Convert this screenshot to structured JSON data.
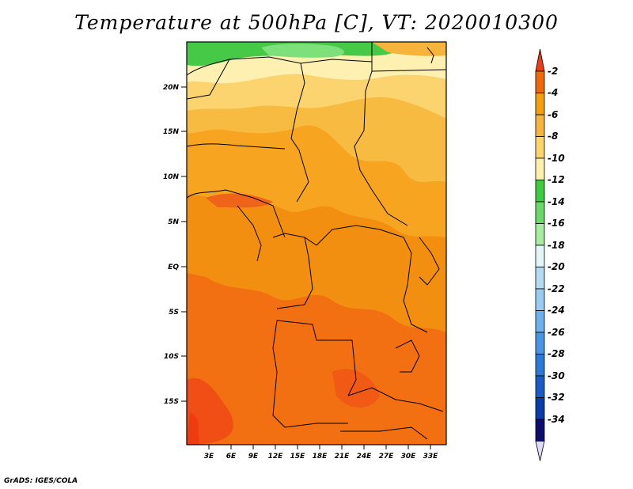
{
  "title": "Temperature at 500hPa [C], VT: 2020010300",
  "credit": "GrADS: IGES/COLA",
  "map": {
    "lat_ticks": [
      "20N",
      "15N",
      "10N",
      "5N",
      "EQ",
      "5S",
      "10S",
      "15S"
    ],
    "lon_ticks": [
      "3E",
      "6E",
      "9E",
      "12E",
      "15E",
      "18E",
      "21E",
      "24E",
      "27E",
      "30E",
      "33E"
    ]
  },
  "colorbar": {
    "labels": [
      "-2",
      "-4",
      "-6",
      "-8",
      "-10",
      "-12",
      "-14",
      "-16",
      "-18",
      "-20",
      "-22",
      "-24",
      "-26",
      "-28",
      "-30",
      "-32",
      "-34"
    ],
    "colors": [
      "#f03c13",
      "#ee6a06",
      "#f59e0d",
      "#f7b43c",
      "#fad56a",
      "#fdf0ac",
      "#3fcb3f",
      "#6ad96a",
      "#a7eca0",
      "#e2f6f8",
      "#b3dbf2",
      "#9acbf0",
      "#6fb1ec",
      "#4895e5",
      "#2b7ad8",
      "#1a5cc4",
      "#0b3da8",
      "#0d0d6e",
      "#dcdcf8"
    ]
  }
}
